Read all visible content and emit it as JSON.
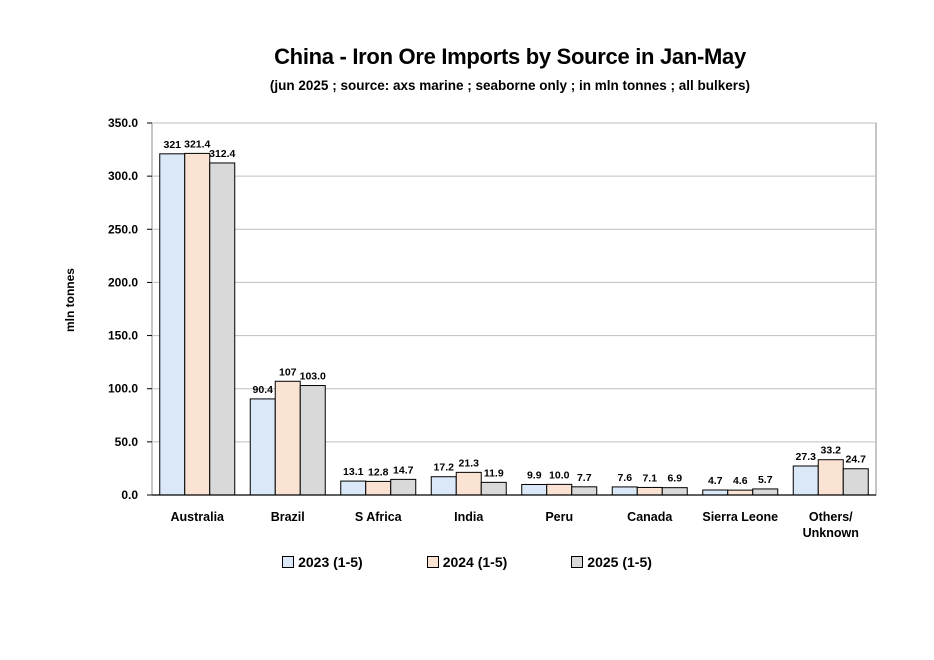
{
  "colors": {
    "series_fills": [
      "#dae8f8",
      "#fbe3d4",
      "#d9d9d9"
    ],
    "bar_stroke": "#000000",
    "grid": "#bfbfbf"
  },
  "chart_data": {
    "type": "bar",
    "title": "China - Iron Ore Imports by Source in Jan-May",
    "subtitle": "(jun 2025 ; source: axs marine ; seaborne only ; in mln tonnes ; all bulkers)",
    "ylabel": "mln tonnes",
    "xlabel": "",
    "ylim": [
      0,
      350
    ],
    "yticks": [
      "0.0",
      "50.0",
      "100.0",
      "150.0",
      "200.0",
      "250.0",
      "300.0",
      "350.0"
    ],
    "grid": true,
    "legend_position": "bottom",
    "categories": [
      "Australia",
      "Brazil",
      "S Africa",
      "India",
      "Peru",
      "Canada",
      "Sierra Leone",
      "Others/\nUnknown"
    ],
    "series": [
      {
        "name": "2023 (1-5)",
        "values": [
          321,
          90.4,
          13.1,
          17.2,
          9.9,
          7.6,
          4.7,
          27.3
        ],
        "labels": [
          "321",
          "90.4",
          "13.1",
          "17.2",
          "9.9",
          "7.6",
          "4.7",
          "27.3"
        ]
      },
      {
        "name": "2024 (1-5)",
        "values": [
          321.4,
          107,
          12.8,
          21.3,
          10.0,
          7.1,
          4.6,
          33.2
        ],
        "labels": [
          "321.4",
          "107",
          "12.8",
          "21.3",
          "10.0",
          "7.1",
          "4.6",
          "33.2"
        ]
      },
      {
        "name": "2025 (1-5)",
        "values": [
          312.4,
          103.0,
          14.7,
          11.9,
          7.7,
          6.9,
          5.7,
          24.7
        ],
        "labels": [
          "312.4",
          "103.0",
          "14.7",
          "11.9",
          "7.7",
          "6.9",
          "5.7",
          "24.7"
        ]
      }
    ]
  }
}
